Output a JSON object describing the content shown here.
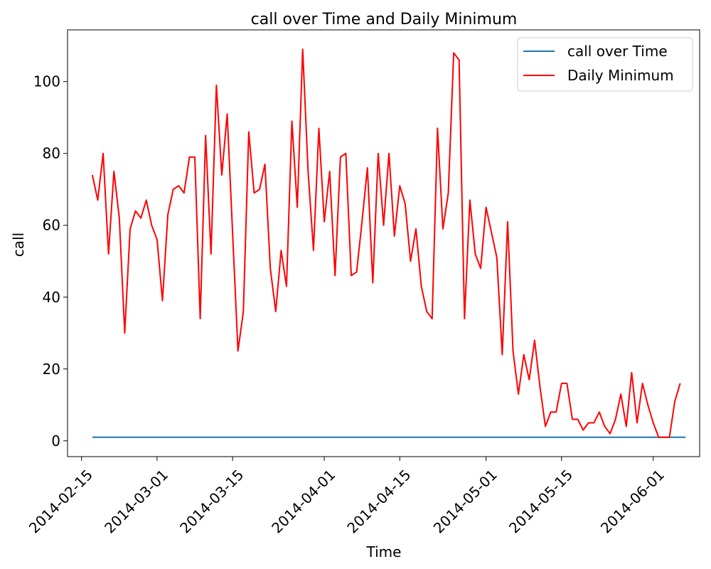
{
  "chart_data": {
    "type": "line",
    "title": "call over Time and Daily Minimum",
    "xlabel": "Time",
    "ylabel": "call",
    "x_start": "2014-02-17",
    "x_end": "2014-06-06",
    "xlim_days": [
      -4.6,
      112.6
    ],
    "ylim": [
      -4.4,
      114.4
    ],
    "x_ticks": [
      {
        "label": "2014-02-15",
        "day": -2
      },
      {
        "label": "2014-03-01",
        "day": 12
      },
      {
        "label": "2014-03-15",
        "day": 26
      },
      {
        "label": "2014-04-01",
        "day": 43
      },
      {
        "label": "2014-04-15",
        "day": 57
      },
      {
        "label": "2014-05-01",
        "day": 73
      },
      {
        "label": "2014-05-15",
        "day": 87
      },
      {
        "label": "2014-06-01",
        "day": 104
      }
    ],
    "y_ticks": [
      0,
      20,
      40,
      60,
      80,
      100
    ],
    "legend_position": "top-right",
    "series": [
      {
        "name": "call over Time",
        "color": "#1f77b4",
        "x_days": [
          0,
          110
        ],
        "values": [
          1,
          1
        ]
      },
      {
        "name": "Daily Minimum",
        "color": "#ff0000",
        "start_day": 0,
        "values": [
          74,
          67,
          80,
          52,
          75,
          62,
          30,
          59,
          64,
          62,
          67,
          60,
          56,
          39,
          63,
          70,
          71,
          69,
          79,
          79,
          34,
          85,
          52,
          99,
          74,
          91,
          58,
          25,
          36,
          86,
          69,
          70,
          77,
          48,
          36,
          53,
          43,
          89,
          65,
          109,
          75,
          53,
          87,
          61,
          75,
          46,
          79,
          80,
          46,
          47,
          61,
          76,
          44,
          80,
          60,
          80,
          57,
          71,
          66,
          50,
          59,
          43,
          36,
          34,
          87,
          59,
          69,
          108,
          106,
          34,
          67,
          52,
          48,
          65,
          58,
          51,
          24,
          61,
          25,
          13,
          24,
          17,
          28,
          15,
          4,
          8,
          8,
          16,
          16,
          6,
          6,
          3,
          5,
          5,
          8,
          4,
          2,
          6,
          13,
          4,
          19,
          5,
          16,
          10,
          5,
          1,
          1,
          1,
          11,
          16
        ]
      }
    ]
  }
}
